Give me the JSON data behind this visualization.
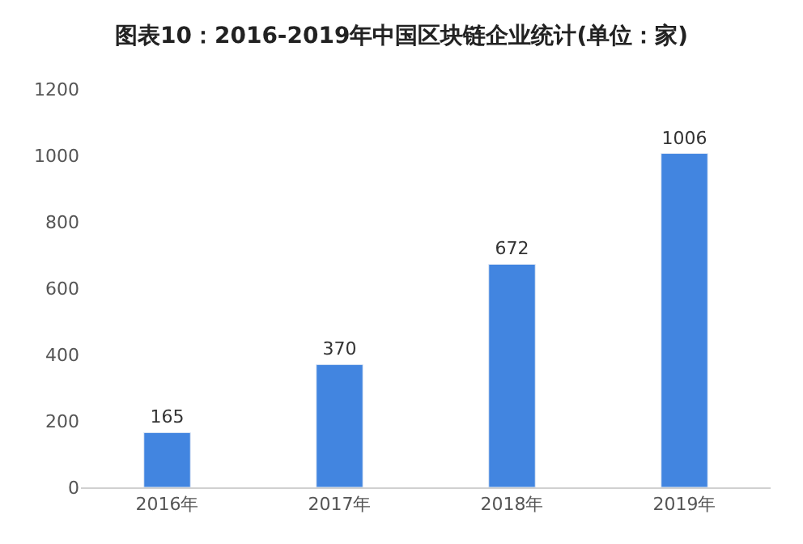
{
  "chart_data": {
    "type": "bar",
    "title": "图表10：2016-2019年中国区块链企业统计(单位：家)",
    "categories": [
      "2016年",
      "2017年",
      "2018年",
      "2019年"
    ],
    "values": [
      165,
      370,
      672,
      1006
    ],
    "color": "#4285e0",
    "ylim": [
      0,
      1200
    ],
    "yticks": [
      0,
      200,
      400,
      600,
      800,
      1000,
      1200
    ],
    "data_labels": true
  }
}
